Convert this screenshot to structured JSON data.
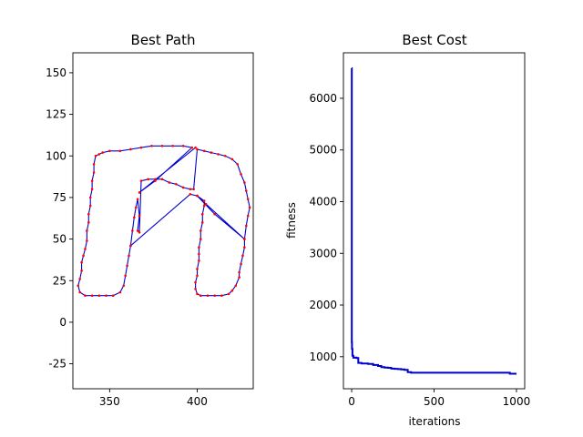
{
  "chart_data": [
    {
      "type": "line",
      "title": "Best Path",
      "xlabel": "",
      "ylabel": "",
      "xlim": [
        329,
        432
      ],
      "ylim": [
        -40,
        162
      ],
      "xticks": [
        350,
        400
      ],
      "yticks": [
        -25,
        0,
        25,
        50,
        75,
        100,
        125,
        150
      ],
      "grid": false,
      "series": [
        {
          "style": "path-with-markers",
          "line_color": "#0000cc",
          "marker_color": "#ff0000",
          "points": [
            [
              362,
              46
            ],
            [
              363,
              55
            ],
            [
              364,
              63
            ],
            [
              365,
              69
            ],
            [
              366,
              74
            ],
            [
              367,
              64
            ],
            [
              366,
              55
            ],
            [
              367,
              54
            ],
            [
              368,
              85
            ],
            [
              372,
              86
            ],
            [
              376,
              86
            ],
            [
              380,
              86
            ],
            [
              384,
              84
            ],
            [
              388,
              83
            ],
            [
              392,
              81
            ],
            [
              396,
              80
            ],
            [
              398,
              80
            ],
            [
              400,
              104
            ],
            [
              404,
              103
            ],
            [
              408,
              102
            ],
            [
              412,
              101
            ],
            [
              416,
              100
            ],
            [
              420,
              98
            ],
            [
              423,
              95
            ],
            [
              425,
              89
            ],
            [
              427,
              84
            ],
            [
              428,
              79
            ],
            [
              429,
              74
            ],
            [
              430,
              69
            ],
            [
              429,
              64
            ],
            [
              428,
              58
            ],
            [
              427,
              50
            ],
            [
              427,
              45
            ],
            [
              426,
              40
            ],
            [
              425,
              35
            ],
            [
              424,
              30
            ],
            [
              424,
              27
            ],
            [
              422,
              22
            ],
            [
              420,
              19
            ],
            [
              418,
              17
            ],
            [
              414,
              16
            ],
            [
              410,
              16
            ],
            [
              406,
              16
            ],
            [
              402,
              16
            ],
            [
              400,
              17
            ],
            [
              399,
              20
            ],
            [
              399,
              24
            ],
            [
              400,
              28
            ],
            [
              400,
              32
            ],
            [
              401,
              37
            ],
            [
              401,
              41
            ],
            [
              401,
              45
            ],
            [
              402,
              50
            ],
            [
              402,
              55
            ],
            [
              403,
              60
            ],
            [
              403,
              65
            ],
            [
              404,
              70
            ],
            [
              404,
              73
            ],
            [
              400,
              76
            ],
            [
              405,
              71
            ],
            [
              427,
              50
            ],
            [
              410,
              65
            ],
            [
              400,
              76
            ],
            [
              396,
              77
            ],
            [
              362,
              46
            ],
            [
              361,
              40
            ],
            [
              360,
              34
            ],
            [
              359,
              28
            ],
            [
              358,
              22
            ],
            [
              356,
              18
            ],
            [
              352,
              16
            ],
            [
              348,
              16
            ],
            [
              344,
              16
            ],
            [
              340,
              16
            ],
            [
              336,
              16
            ],
            [
              333,
              18
            ],
            [
              332,
              22
            ],
            [
              333,
              26
            ],
            [
              334,
              31
            ],
            [
              334,
              36
            ],
            [
              335,
              40
            ],
            [
              336,
              44
            ],
            [
              337,
              49
            ],
            [
              337,
              55
            ],
            [
              338,
              60
            ],
            [
              338,
              65
            ],
            [
              339,
              70
            ],
            [
              339,
              75
            ],
            [
              340,
              80
            ],
            [
              340,
              85
            ],
            [
              341,
              90
            ],
            [
              341,
              95
            ],
            [
              342,
              100
            ],
            [
              344,
              101
            ],
            [
              346,
              102
            ],
            [
              350,
              103
            ],
            [
              356,
              103
            ],
            [
              362,
              104
            ],
            [
              368,
              105
            ],
            [
              374,
              106
            ],
            [
              380,
              106
            ],
            [
              386,
              106
            ],
            [
              392,
              106
            ],
            [
              397,
              105
            ],
            [
              376,
              85
            ],
            [
              367,
              78
            ],
            [
              399,
              105
            ]
          ]
        }
      ]
    },
    {
      "type": "line",
      "title": "Best Cost",
      "xlabel": "iterations",
      "ylabel": "fitness",
      "xlim": [
        -50,
        1050
      ],
      "ylim": [
        380,
        6880
      ],
      "xticks": [
        0,
        500,
        1000
      ],
      "yticks": [
        1000,
        2000,
        3000,
        4000,
        5000,
        6000
      ],
      "grid": false,
      "series": [
        {
          "style": "step",
          "color": "#0000cc",
          "x": [
            0,
            1,
            2,
            5,
            10,
            20,
            30,
            40,
            60,
            100,
            130,
            160,
            180,
            200,
            220,
            240,
            260,
            280,
            300,
            320,
            340,
            360,
            400,
            500,
            600,
            700,
            800,
            900,
            940,
            960,
            1000
          ],
          "y": [
            6580,
            1280,
            1150,
            1020,
            980,
            985,
            975,
            880,
            870,
            860,
            840,
            820,
            800,
            790,
            785,
            770,
            765,
            760,
            755,
            745,
            700,
            690,
            690,
            690,
            690,
            690,
            690,
            690,
            690,
            670,
            670
          ]
        }
      ]
    }
  ]
}
